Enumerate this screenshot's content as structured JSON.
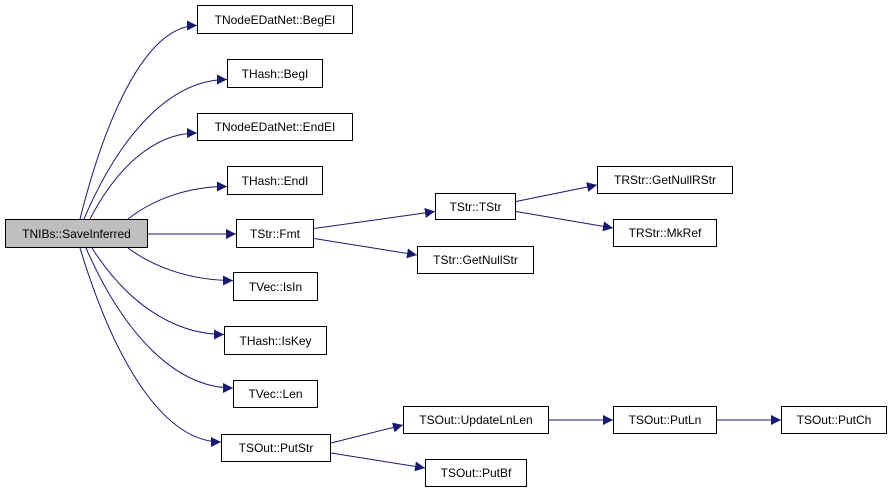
{
  "graph": {
    "edge_color": "#191970",
    "root_fill": "#bfbfbf",
    "nodes": [
      {
        "id": "saveinferred",
        "label": "TNIBs::SaveInferred",
        "root": true
      },
      {
        "id": "begei",
        "label": "TNodeEDatNet::BegEI"
      },
      {
        "id": "begi",
        "label": "THash::BegI"
      },
      {
        "id": "endei",
        "label": "TNodeEDatNet::EndEI"
      },
      {
        "id": "endi",
        "label": "THash::EndI"
      },
      {
        "id": "fmt",
        "label": "TStr::Fmt"
      },
      {
        "id": "tstr",
        "label": "TStr::TStr"
      },
      {
        "id": "getnullstr",
        "label": "TStr::GetNullStr"
      },
      {
        "id": "getnullrstr",
        "label": "TRStr::GetNullRStr"
      },
      {
        "id": "mkref",
        "label": "TRStr::MkRef"
      },
      {
        "id": "isin",
        "label": "TVec::IsIn"
      },
      {
        "id": "iskey",
        "label": "THash::IsKey"
      },
      {
        "id": "len",
        "label": "TVec::Len"
      },
      {
        "id": "putstr",
        "label": "TSOut::PutStr"
      },
      {
        "id": "updatelnlen",
        "label": "TSOut::UpdateLnLen"
      },
      {
        "id": "putln",
        "label": "TSOut::PutLn"
      },
      {
        "id": "putch",
        "label": "TSOut::PutCh"
      },
      {
        "id": "putbf",
        "label": "TSOut::PutBf"
      }
    ],
    "edges": [
      [
        "saveinferred",
        "begei"
      ],
      [
        "saveinferred",
        "begi"
      ],
      [
        "saveinferred",
        "endei"
      ],
      [
        "saveinferred",
        "endi"
      ],
      [
        "saveinferred",
        "fmt"
      ],
      [
        "saveinferred",
        "isin"
      ],
      [
        "saveinferred",
        "iskey"
      ],
      [
        "saveinferred",
        "len"
      ],
      [
        "saveinferred",
        "putstr"
      ],
      [
        "fmt",
        "tstr"
      ],
      [
        "fmt",
        "getnullstr"
      ],
      [
        "tstr",
        "getnullrstr"
      ],
      [
        "tstr",
        "mkref"
      ],
      [
        "putstr",
        "updatelnlen"
      ],
      [
        "putstr",
        "putbf"
      ],
      [
        "updatelnlen",
        "putln"
      ],
      [
        "putln",
        "putch"
      ]
    ]
  }
}
